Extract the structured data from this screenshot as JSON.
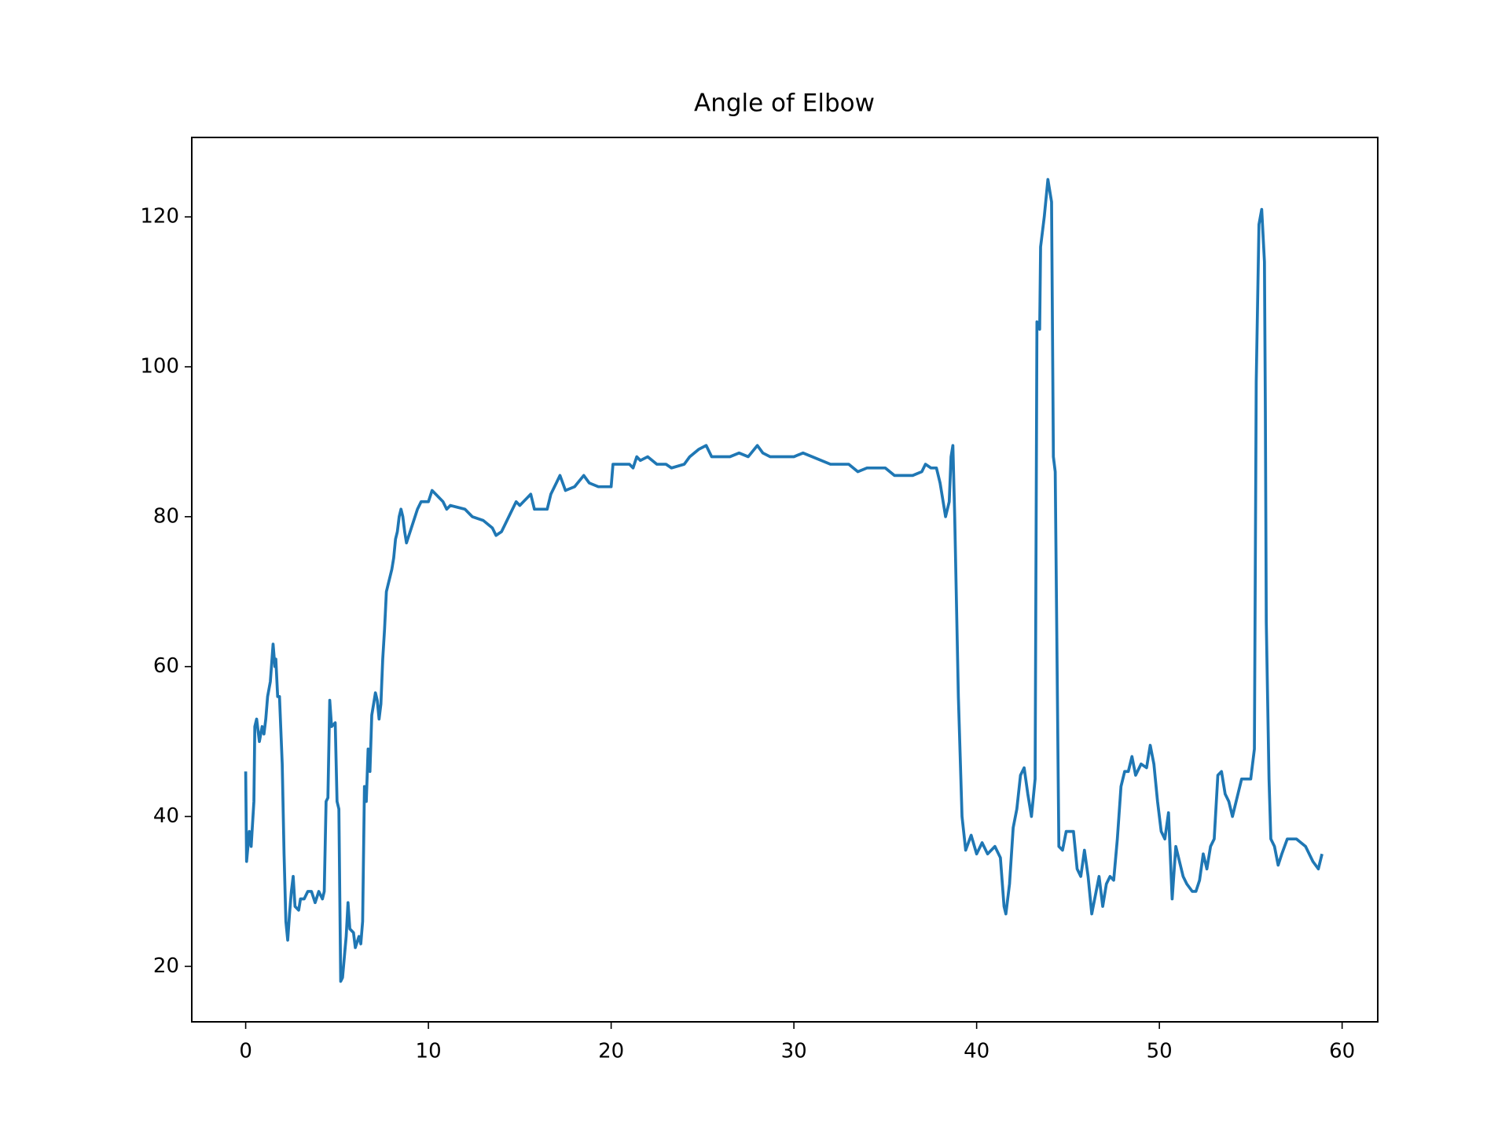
{
  "chart_data": {
    "type": "line",
    "title": "Angle of Elbow",
    "x": [
      0,
      0.05,
      0.2,
      0.3,
      0.45,
      0.5,
      0.6,
      0.75,
      0.9,
      1.0,
      1.1,
      1.2,
      1.35,
      1.5,
      1.6,
      1.65,
      1.75,
      1.85,
      2.0,
      2.1,
      2.2,
      2.3,
      2.4,
      2.5,
      2.6,
      2.7,
      2.9,
      3.0,
      3.2,
      3.4,
      3.6,
      3.8,
      4.0,
      4.2,
      4.3,
      4.4,
      4.5,
      4.6,
      4.7,
      4.9,
      5.0,
      5.1,
      5.2,
      5.3,
      5.5,
      5.6,
      5.7,
      5.9,
      6.0,
      6.2,
      6.3,
      6.4,
      6.5,
      6.6,
      6.7,
      6.8,
      6.9,
      7.0,
      7.1,
      7.2,
      7.3,
      7.4,
      7.5,
      7.6,
      7.7,
      7.8,
      7.9,
      8.0,
      8.1,
      8.2,
      8.3,
      8.4,
      8.5,
      8.6,
      8.7,
      8.8,
      9.0,
      9.2,
      9.4,
      9.6,
      10.0,
      10.2,
      10.4,
      10.8,
      11.0,
      11.2,
      12.0,
      12.4,
      13.0,
      13.5,
      13.7,
      14.0,
      14.2,
      14.5,
      14.8,
      15.0,
      15.2,
      15.4,
      15.6,
      15.8,
      16.5,
      16.7,
      17.0,
      17.2,
      17.5,
      18.0,
      18.5,
      18.8,
      19.3,
      20.0,
      20.1,
      20.5,
      21.0,
      21.2,
      21.4,
      21.6,
      22.0,
      22.5,
      23.0,
      23.3,
      24.0,
      24.3,
      24.8,
      25.2,
      25.5,
      26.0,
      26.5,
      27.0,
      27.5,
      28.0,
      28.3,
      28.7,
      30.0,
      30.5,
      31.0,
      32.0,
      33.0,
      33.5,
      34.0,
      35.0,
      35.5,
      36.0,
      36.5,
      37.0,
      37.2,
      37.5,
      37.8,
      38.0,
      38.3,
      38.5,
      38.6,
      38.7,
      38.8,
      39.0,
      39.2,
      39.4,
      39.7,
      40.0,
      40.3,
      40.6,
      41.0,
      41.3,
      41.5,
      41.6,
      41.8,
      42.0,
      42.2,
      42.4,
      42.6,
      42.8,
      43.0,
      43.2,
      43.3,
      43.45,
      43.5,
      43.7,
      43.9,
      44.1,
      44.2,
      44.3,
      44.5,
      44.7,
      44.9,
      45.3,
      45.5,
      45.7,
      45.9,
      46.1,
      46.3,
      46.5,
      46.7,
      46.9,
      47.1,
      47.3,
      47.5,
      47.7,
      47.9,
      48.1,
      48.3,
      48.5,
      48.7,
      49.0,
      49.3,
      49.5,
      49.7,
      49.9,
      50.1,
      50.3,
      50.5,
      50.7,
      50.9,
      51.1,
      51.3,
      51.5,
      51.8,
      52.0,
      52.2,
      52.4,
      52.6,
      52.8,
      53.0,
      53.2,
      53.4,
      53.6,
      53.8,
      54.0,
      54.2,
      54.5,
      55.0,
      55.2,
      55.3,
      55.45,
      55.6,
      55.75,
      55.8,
      55.85,
      56.0,
      56.1,
      56.3,
      56.5,
      56.7,
      57.0,
      57.5,
      58.0,
      58.4,
      58.7,
      58.9
    ],
    "series": [
      {
        "color": "#1f77b4",
        "values": [
          46,
          34,
          38,
          36,
          42,
          52,
          53,
          50,
          52,
          51,
          53,
          56,
          58,
          63,
          60,
          61,
          56,
          56,
          47,
          35,
          26,
          23.5,
          27,
          30,
          32,
          28,
          27.5,
          29,
          29,
          30,
          30,
          28.5,
          30,
          29,
          30,
          42,
          42.5,
          55.5,
          52,
          52.5,
          42,
          41,
          18,
          18.5,
          24,
          28.5,
          25,
          24.5,
          22.5,
          24,
          23,
          26,
          44,
          42,
          49,
          46,
          53.5,
          55,
          56.5,
          55.5,
          53,
          55,
          61,
          65,
          70,
          71,
          72,
          73,
          74.5,
          77,
          78,
          80,
          81,
          80,
          78,
          76.5,
          78,
          79.5,
          81,
          82,
          82,
          83.5,
          83,
          82,
          81,
          81.5,
          81,
          80,
          79.5,
          78.5,
          77.5,
          78,
          79,
          80.5,
          82,
          81.5,
          82,
          82.5,
          83,
          81,
          81,
          83,
          84.5,
          85.5,
          83.5,
          84,
          85.5,
          84.5,
          84,
          84,
          87,
          87,
          87,
          86.5,
          88,
          87.5,
          88,
          87,
          87,
          86.5,
          87,
          88,
          89,
          89.5,
          88,
          88,
          88,
          88.5,
          88,
          89.5,
          88.5,
          88,
          88,
          88.5,
          88,
          87,
          87,
          86,
          86.5,
          86.5,
          85.5,
          85.5,
          85.5,
          86,
          87,
          86.5,
          86.5,
          84.5,
          80,
          82,
          88,
          89.5,
          80,
          56,
          40,
          35.5,
          37.5,
          35,
          36.5,
          35,
          36,
          34.5,
          28,
          27,
          31,
          38.5,
          41,
          45.5,
          46.5,
          43,
          40,
          45,
          106,
          105,
          116,
          120,
          125,
          122,
          88,
          86,
          36,
          35.5,
          38,
          38,
          33,
          32,
          35.5,
          32,
          27,
          29.5,
          32,
          28,
          31,
          32,
          31.5,
          37,
          44,
          46,
          46,
          48,
          45.5,
          47,
          46.5,
          49.5,
          47,
          42,
          38,
          37,
          40.5,
          29,
          36,
          34,
          32,
          31,
          30,
          30,
          31.5,
          35,
          33,
          36,
          37,
          45.5,
          46,
          43,
          42,
          40,
          42,
          45,
          45,
          49,
          98,
          119,
          121,
          114,
          94,
          66,
          45,
          37,
          36,
          33.5,
          35,
          37,
          37,
          36,
          34,
          33,
          35
        ]
      }
    ],
    "xlim": [
      -2.95,
      61.95
    ],
    "ylim": [
      12.6,
      130.6
    ],
    "xticks": [
      0,
      10,
      20,
      30,
      40,
      50,
      60
    ],
    "yticks": [
      20,
      40,
      60,
      80,
      100,
      120
    ]
  }
}
